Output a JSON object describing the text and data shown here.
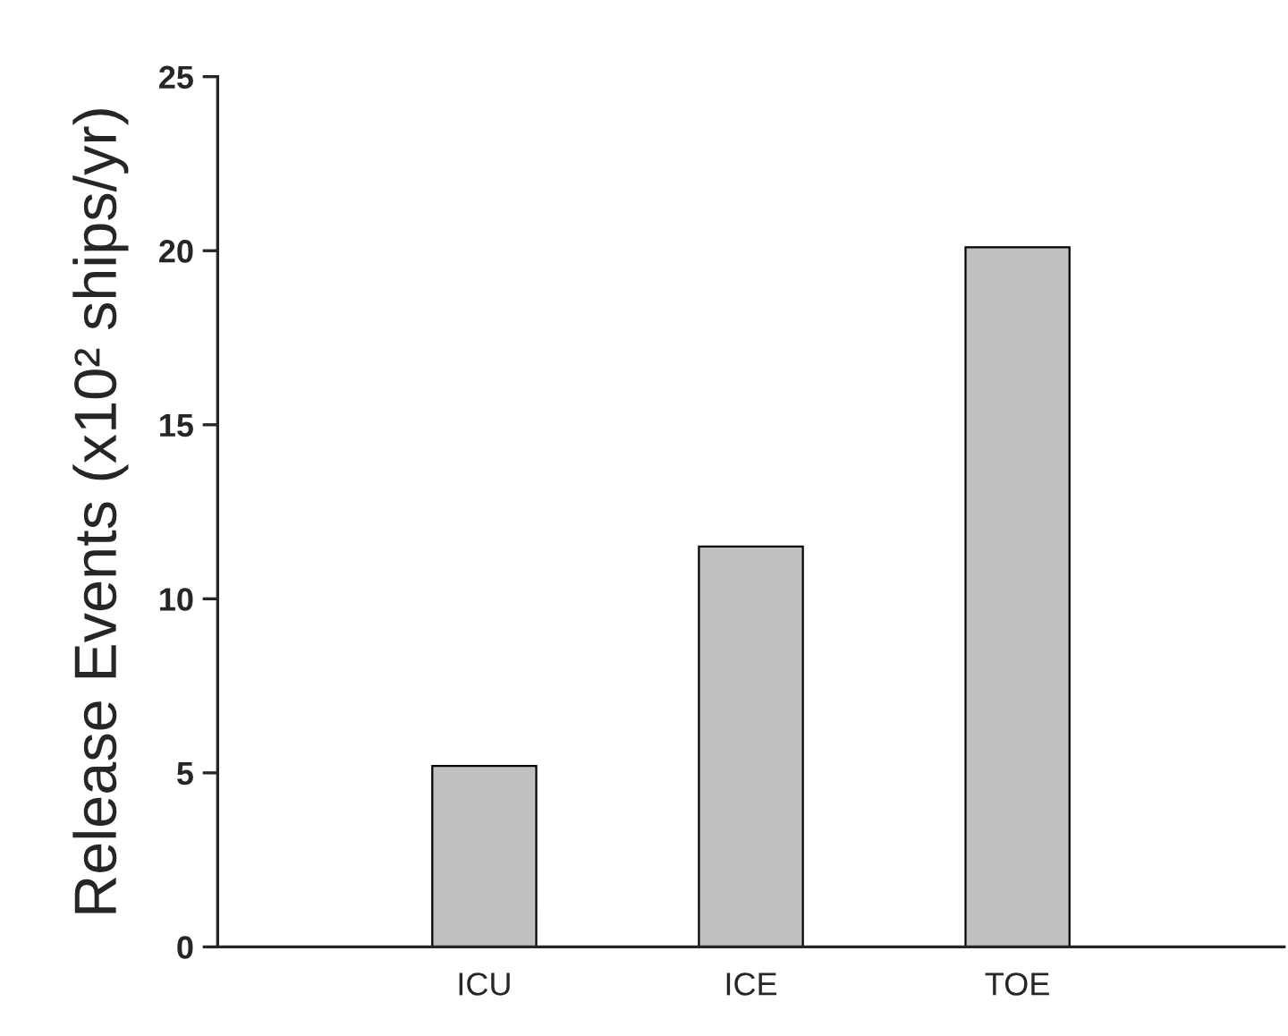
{
  "chart_data": {
    "type": "bar",
    "ylabel": "Release Events (x10² ships/yr)",
    "categories": [
      null,
      "ICU",
      "ICE",
      "TOE",
      null
    ],
    "values": [
      null,
      5.2,
      11.5,
      20.1,
      null
    ],
    "color": "#c0c0c0",
    "ylim": [
      0,
      25
    ],
    "yticks": [
      0,
      5,
      10,
      15,
      20,
      25
    ],
    "grid": false,
    "legend": false
  }
}
